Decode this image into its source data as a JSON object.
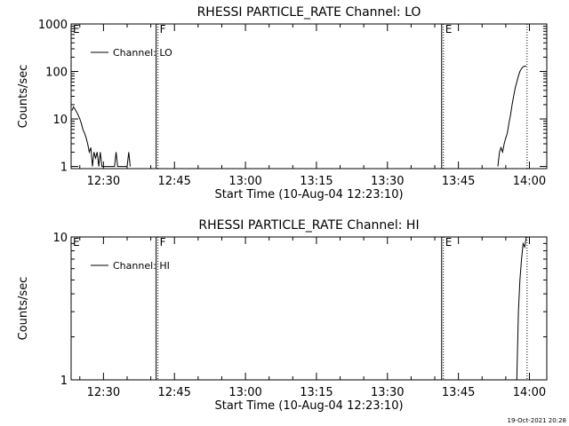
{
  "chart_data": [
    {
      "type": "line",
      "title": "RHESSI PARTICLE_RATE Channel: LO",
      "xlabel": "Start Time (10-Aug-04 12:23:10)",
      "ylabel": "Counts/sec",
      "yscale": "log",
      "ylim": [
        0.9,
        1000
      ],
      "yticks": [
        1,
        10,
        100,
        1000
      ],
      "ytick_labels": [
        "1",
        "10",
        "100",
        "1000"
      ],
      "xlim": [
        "12:23:10",
        "14:03:40"
      ],
      "xticks": [
        "12:30",
        "12:45",
        "13:00",
        "13:15",
        "13:30",
        "13:45",
        "14:00"
      ],
      "legend": "Channel: LO",
      "legend_position": "top-left",
      "grid": false,
      "flags": [
        {
          "time": "12:23:10",
          "label": "E",
          "style": "dotted"
        },
        {
          "time": "12:41:30",
          "label": "F",
          "style": "solid+dotted"
        },
        {
          "time": "13:41:50",
          "label": "E",
          "style": "solid+dotted"
        },
        {
          "time": "13:59:30",
          "label": "",
          "style": "dotted"
        }
      ],
      "series": [
        {
          "name": "Channel: LO",
          "segments": [
            [
              [
                "12:23:20",
                15
              ],
              [
                "12:23:40",
                18
              ],
              [
                "12:24:00",
                16
              ],
              [
                "12:24:20",
                14
              ],
              [
                "12:24:40",
                12
              ],
              [
                "12:25:00",
                10
              ],
              [
                "12:25:20",
                8
              ],
              [
                "12:25:40",
                6
              ],
              [
                "12:26:00",
                5
              ],
              [
                "12:26:20",
                4
              ],
              [
                "12:26:40",
                3
              ],
              [
                "12:27:00",
                2
              ],
              [
                "12:27:20",
                2.5
              ],
              [
                "12:27:40",
                1
              ],
              [
                "12:28:00",
                2
              ],
              [
                "12:28:20",
                1.5
              ],
              [
                "12:28:40",
                2
              ],
              [
                "12:29:00",
                1
              ],
              [
                "12:29:20",
                2
              ],
              [
                "12:29:40",
                1
              ],
              [
                "12:32:20",
                1
              ],
              [
                "12:32:40",
                2
              ],
              [
                "12:33:00",
                1
              ],
              [
                "12:35:00",
                1
              ],
              [
                "12:35:20",
                2
              ],
              [
                "12:35:40",
                1
              ]
            ],
            [
              [
                "13:53:20",
                1
              ],
              [
                "13:53:40",
                2
              ],
              [
                "13:54:00",
                2.5
              ],
              [
                "13:54:20",
                2
              ],
              [
                "13:54:40",
                3
              ],
              [
                "13:55:00",
                4
              ],
              [
                "13:55:20",
                5
              ],
              [
                "13:55:40",
                8
              ],
              [
                "13:56:00",
                12
              ],
              [
                "13:56:20",
                20
              ],
              [
                "13:56:40",
                30
              ],
              [
                "13:57:00",
                45
              ],
              [
                "13:57:20",
                60
              ],
              [
                "13:57:40",
                80
              ],
              [
                "13:58:00",
                100
              ],
              [
                "13:58:20",
                115
              ],
              [
                "13:58:40",
                125
              ],
              [
                "13:59:00",
                130
              ],
              [
                "13:59:20",
                128
              ]
            ]
          ]
        }
      ]
    },
    {
      "type": "line",
      "title": "RHESSI PARTICLE_RATE Channel: HI",
      "xlabel": "Start Time (10-Aug-04 12:23:10)",
      "ylabel": "Counts/sec",
      "yscale": "log",
      "ylim": [
        1,
        10
      ],
      "yticks": [
        1,
        10
      ],
      "ytick_labels": [
        "1",
        "10"
      ],
      "xlim": [
        "12:23:10",
        "14:03:40"
      ],
      "xticks": [
        "12:30",
        "12:45",
        "13:00",
        "13:15",
        "13:30",
        "13:45",
        "14:00"
      ],
      "legend": "Channel: HI",
      "legend_position": "top-left",
      "grid": false,
      "flags": [
        {
          "time": "12:23:10",
          "label": "E",
          "style": "dotted"
        },
        {
          "time": "12:41:30",
          "label": "F",
          "style": "solid+dotted"
        },
        {
          "time": "13:41:50",
          "label": "E",
          "style": "solid+dotted"
        },
        {
          "time": "13:59:30",
          "label": "",
          "style": "dotted"
        }
      ],
      "series": [
        {
          "name": "Channel: HI",
          "segments": [
            [
              [
                "13:57:20",
                1
              ],
              [
                "13:57:40",
                3
              ],
              [
                "13:58:00",
                5
              ],
              [
                "13:58:20",
                7
              ],
              [
                "13:58:40",
                9
              ],
              [
                "13:59:00",
                8.5
              ],
              [
                "13:59:20",
                10
              ]
            ]
          ]
        }
      ]
    }
  ],
  "footer_timestamp": "19-Oct-2021 20:28"
}
